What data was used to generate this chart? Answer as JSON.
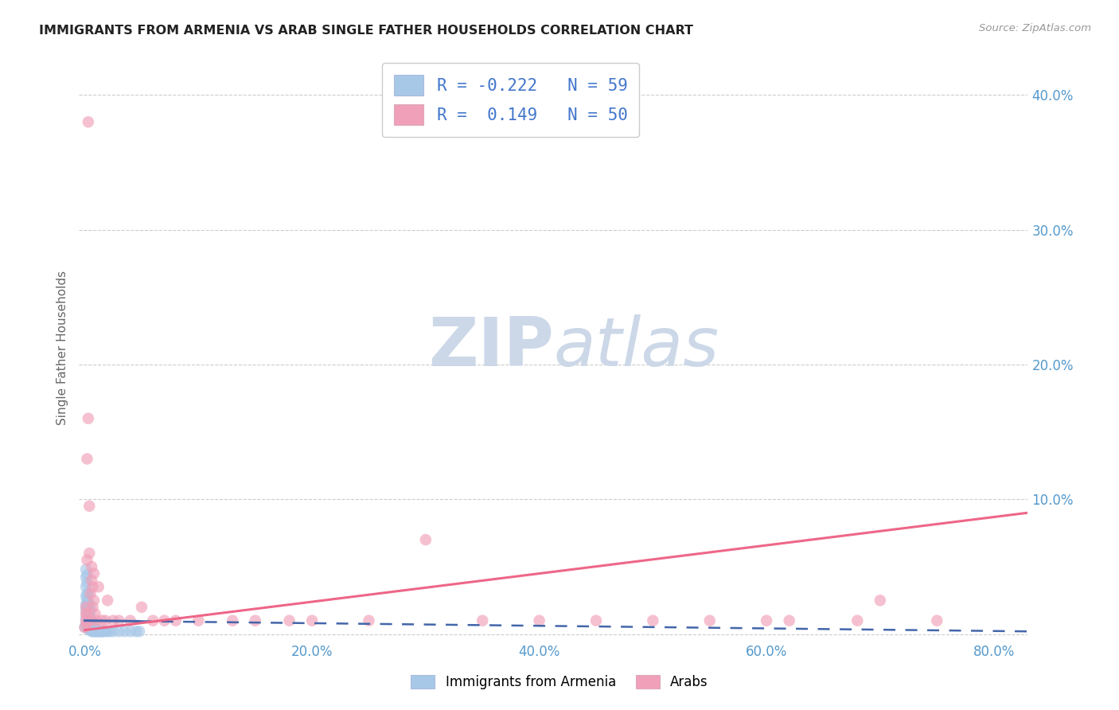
{
  "title": "IMMIGRANTS FROM ARMENIA VS ARAB SINGLE FATHER HOUSEHOLDS CORRELATION CHART",
  "source": "Source: ZipAtlas.com",
  "ylabel": "Single Father Households",
  "x_tick_labels": [
    "0.0%",
    "20.0%",
    "40.0%",
    "60.0%",
    "80.0%"
  ],
  "x_tick_vals": [
    0.0,
    0.2,
    0.4,
    0.6,
    0.8
  ],
  "y_tick_labels": [
    "",
    "10.0%",
    "20.0%",
    "30.0%",
    "40.0%"
  ],
  "y_tick_vals": [
    0.0,
    0.1,
    0.2,
    0.3,
    0.4
  ],
  "xlim": [
    -0.005,
    0.83
  ],
  "ylim": [
    -0.005,
    0.43
  ],
  "legend_label1": "Immigrants from Armenia",
  "legend_label2": "Arabs",
  "R1": "-0.222",
  "N1": "59",
  "R2": "0.149",
  "N2": "50",
  "color_blue": "#a8c8e8",
  "color_pink": "#f0a0b8",
  "color_blue_line": "#4466aa",
  "color_pink_line": "#ee6688",
  "color_blue_text": "#4477cc",
  "color_axis_label": "#5599cc",
  "watermark_color": "#ccd8e8",
  "background_color": "#ffffff",
  "title_color": "#222222",
  "blue_scatter": [
    [
      0.0,
      0.005
    ],
    [
      0.001,
      0.008
    ],
    [
      0.001,
      0.012
    ],
    [
      0.001,
      0.018
    ],
    [
      0.001,
      0.022
    ],
    [
      0.001,
      0.028
    ],
    [
      0.001,
      0.035
    ],
    [
      0.001,
      0.042
    ],
    [
      0.001,
      0.048
    ],
    [
      0.002,
      0.005
    ],
    [
      0.002,
      0.01
    ],
    [
      0.002,
      0.015
    ],
    [
      0.002,
      0.02
    ],
    [
      0.002,
      0.025
    ],
    [
      0.002,
      0.03
    ],
    [
      0.002,
      0.038
    ],
    [
      0.002,
      0.044
    ],
    [
      0.003,
      0.004
    ],
    [
      0.003,
      0.008
    ],
    [
      0.003,
      0.012
    ],
    [
      0.003,
      0.018
    ],
    [
      0.003,
      0.024
    ],
    [
      0.003,
      0.03
    ],
    [
      0.004,
      0.003
    ],
    [
      0.004,
      0.007
    ],
    [
      0.004,
      0.012
    ],
    [
      0.004,
      0.016
    ],
    [
      0.004,
      0.022
    ],
    [
      0.005,
      0.003
    ],
    [
      0.005,
      0.007
    ],
    [
      0.005,
      0.012
    ],
    [
      0.005,
      0.018
    ],
    [
      0.006,
      0.002
    ],
    [
      0.006,
      0.006
    ],
    [
      0.006,
      0.01
    ],
    [
      0.007,
      0.002
    ],
    [
      0.007,
      0.005
    ],
    [
      0.007,
      0.009
    ],
    [
      0.008,
      0.002
    ],
    [
      0.008,
      0.005
    ],
    [
      0.009,
      0.002
    ],
    [
      0.009,
      0.004
    ],
    [
      0.01,
      0.002
    ],
    [
      0.01,
      0.004
    ],
    [
      0.011,
      0.002
    ],
    [
      0.012,
      0.002
    ],
    [
      0.013,
      0.002
    ],
    [
      0.014,
      0.002
    ],
    [
      0.015,
      0.002
    ],
    [
      0.016,
      0.002
    ],
    [
      0.018,
      0.002
    ],
    [
      0.02,
      0.002
    ],
    [
      0.022,
      0.002
    ],
    [
      0.025,
      0.002
    ],
    [
      0.03,
      0.002
    ],
    [
      0.035,
      0.002
    ],
    [
      0.04,
      0.002
    ],
    [
      0.045,
      0.002
    ],
    [
      0.048,
      0.002
    ]
  ],
  "pink_scatter": [
    [
      0.0,
      0.005
    ],
    [
      0.001,
      0.01
    ],
    [
      0.001,
      0.015
    ],
    [
      0.001,
      0.02
    ],
    [
      0.002,
      0.008
    ],
    [
      0.002,
      0.015
    ],
    [
      0.002,
      0.055
    ],
    [
      0.002,
      0.13
    ],
    [
      0.003,
      0.16
    ],
    [
      0.003,
      0.38
    ],
    [
      0.004,
      0.095
    ],
    [
      0.004,
      0.06
    ],
    [
      0.005,
      0.01
    ],
    [
      0.005,
      0.03
    ],
    [
      0.006,
      0.04
    ],
    [
      0.006,
      0.05
    ],
    [
      0.007,
      0.02
    ],
    [
      0.007,
      0.035
    ],
    [
      0.008,
      0.025
    ],
    [
      0.008,
      0.045
    ],
    [
      0.009,
      0.015
    ],
    [
      0.01,
      0.01
    ],
    [
      0.012,
      0.035
    ],
    [
      0.015,
      0.01
    ],
    [
      0.018,
      0.01
    ],
    [
      0.02,
      0.025
    ],
    [
      0.025,
      0.01
    ],
    [
      0.03,
      0.01
    ],
    [
      0.04,
      0.01
    ],
    [
      0.05,
      0.02
    ],
    [
      0.06,
      0.01
    ],
    [
      0.07,
      0.01
    ],
    [
      0.08,
      0.01
    ],
    [
      0.1,
      0.01
    ],
    [
      0.13,
      0.01
    ],
    [
      0.15,
      0.01
    ],
    [
      0.18,
      0.01
    ],
    [
      0.2,
      0.01
    ],
    [
      0.25,
      0.01
    ],
    [
      0.3,
      0.07
    ],
    [
      0.35,
      0.01
    ],
    [
      0.4,
      0.01
    ],
    [
      0.45,
      0.01
    ],
    [
      0.5,
      0.01
    ],
    [
      0.55,
      0.01
    ],
    [
      0.6,
      0.01
    ],
    [
      0.62,
      0.01
    ],
    [
      0.68,
      0.01
    ],
    [
      0.7,
      0.025
    ],
    [
      0.75,
      0.01
    ]
  ],
  "blue_line": {
    "x0": 0.0,
    "x_solid_end": 0.048,
    "x_end": 0.83,
    "y0": 0.01,
    "y_end": 0.002
  },
  "pink_line": {
    "x0": 0.0,
    "x_end": 0.83,
    "y0": 0.003,
    "y_end": 0.09
  }
}
